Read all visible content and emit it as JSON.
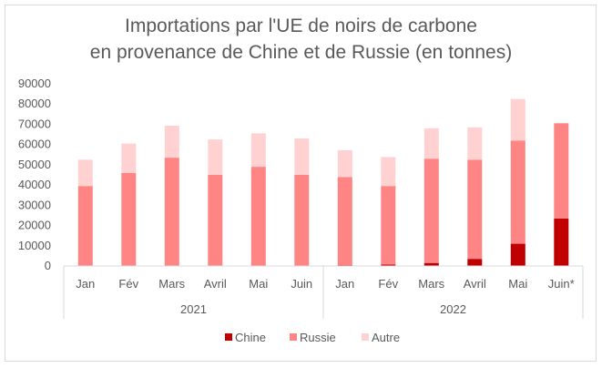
{
  "chart_data": {
    "type": "bar",
    "stacked": true,
    "title_lines": [
      "Importations par l'UE de noirs de carbone",
      "en provenance de Chine et de Russie (en tonnes)"
    ],
    "categories": [
      "Jan",
      "Fév",
      "Mars",
      "Avril",
      "Mai",
      "Juin",
      "Jan",
      "Fév",
      "Mars",
      "Avril",
      "Mai",
      "Juin*"
    ],
    "groups": [
      {
        "label": "2021",
        "count": 6
      },
      {
        "label": "2022",
        "count": 6
      }
    ],
    "y_ticks": [
      "0",
      "10000",
      "20000",
      "30000",
      "40000",
      "50000",
      "60000",
      "70000",
      "80000",
      "90000"
    ],
    "ylim": [
      0,
      90000
    ],
    "series": [
      {
        "name": "Chine",
        "color": "#c00000",
        "values": [
          0,
          0,
          0,
          0,
          0,
          0,
          400,
          700,
          1500,
          3500,
          11000,
          23500
        ]
      },
      {
        "name": "Russie",
        "color": "#ff8585",
        "values": [
          39500,
          46000,
          53500,
          45000,
          49000,
          45000,
          43500,
          38800,
          51500,
          49000,
          51000,
          47000
        ]
      },
      {
        "name": "Autre",
        "color": "#ffd1d1",
        "values": [
          13000,
          14500,
          15800,
          17500,
          16500,
          18000,
          13300,
          14300,
          15000,
          16000,
          20500,
          0
        ]
      }
    ],
    "legend_position": "bottom",
    "grid": false
  }
}
